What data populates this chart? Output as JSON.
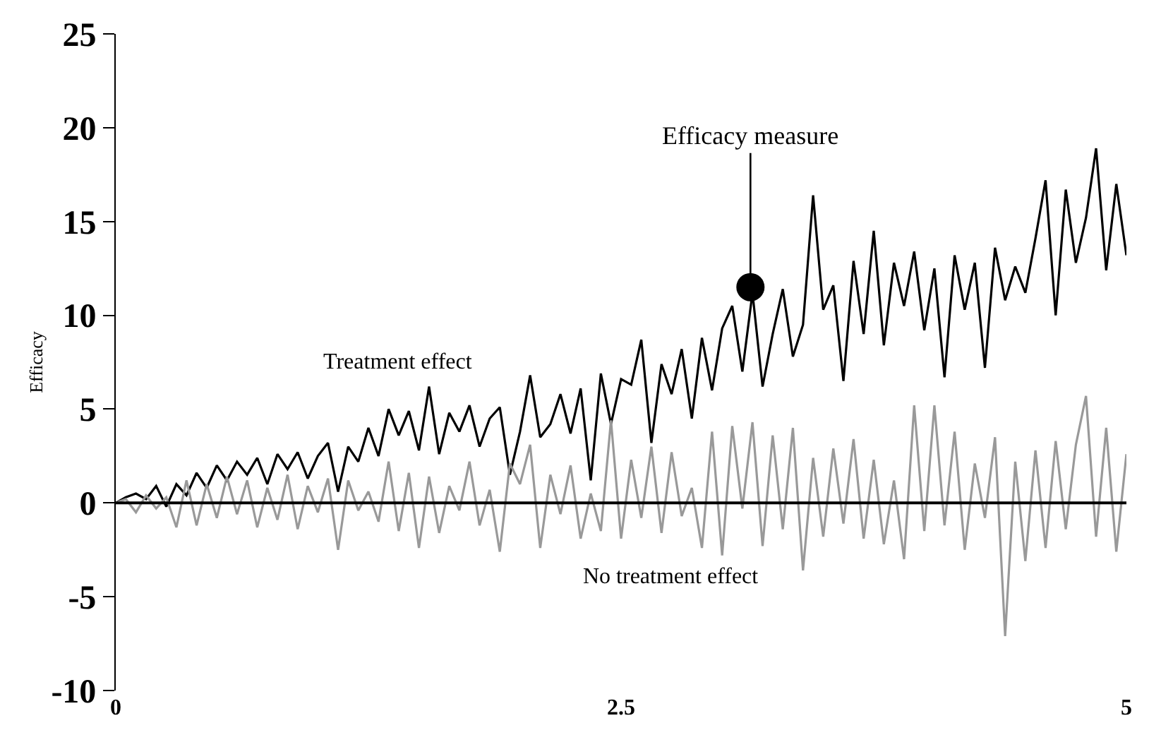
{
  "chart_data": {
    "type": "line",
    "ylabel": "Efficacy",
    "x": [
      0,
      0.05,
      0.1,
      0.15,
      0.2,
      0.25,
      0.3,
      0.35,
      0.4,
      0.45,
      0.5,
      0.55,
      0.6,
      0.65,
      0.7,
      0.75,
      0.8,
      0.85,
      0.9,
      0.95,
      1,
      1.05,
      1.1,
      1.15,
      1.2,
      1.25,
      1.3,
      1.35,
      1.4,
      1.45,
      1.5,
      1.55,
      1.6,
      1.65,
      1.7,
      1.75,
      1.8,
      1.85,
      1.9,
      1.95,
      2,
      2.05,
      2.1,
      2.15,
      2.2,
      2.25,
      2.3,
      2.35,
      2.4,
      2.45,
      2.5,
      2.55,
      2.6,
      2.65,
      2.7,
      2.75,
      2.8,
      2.85,
      2.9,
      2.95,
      3,
      3.05,
      3.1,
      3.15,
      3.2,
      3.25,
      3.3,
      3.35,
      3.4,
      3.45,
      3.5,
      3.55,
      3.6,
      3.65,
      3.7,
      3.75,
      3.8,
      3.85,
      3.9,
      3.95,
      4,
      4.05,
      4.1,
      4.15,
      4.2,
      4.25,
      4.3,
      4.35,
      4.4,
      4.45,
      4.5,
      4.55,
      4.6,
      4.65,
      4.7,
      4.75,
      4.8,
      4.85,
      4.9,
      4.95,
      5
    ],
    "series": [
      {
        "name": "Treatment effect",
        "color": "#000000",
        "values": [
          0,
          0.3,
          0.5,
          0.2,
          0.9,
          -0.2,
          1.0,
          0.4,
          1.6,
          0.8,
          2.0,
          1.2,
          2.2,
          1.5,
          2.4,
          1.0,
          2.6,
          1.8,
          2.7,
          1.3,
          2.5,
          3.2,
          0.6,
          3.0,
          2.2,
          4.0,
          2.5,
          5.0,
          3.6,
          4.9,
          2.8,
          6.2,
          2.6,
          4.8,
          3.8,
          5.2,
          3.0,
          4.5,
          5.1,
          1.5,
          3.8,
          6.8,
          3.5,
          4.2,
          5.8,
          3.7,
          6.1,
          1.2,
          6.9,
          4.2,
          6.6,
          6.3,
          8.7,
          3.2,
          7.4,
          5.8,
          8.2,
          4.5,
          8.8,
          6.0,
          9.3,
          10.5,
          7.0,
          11.2,
          6.2,
          9.0,
          11.4,
          7.8,
          9.5,
          16.4,
          10.3,
          11.6,
          6.5,
          12.9,
          9.0,
          14.5,
          8.4,
          12.8,
          10.5,
          13.4,
          9.2,
          12.5,
          6.7,
          13.2,
          10.3,
          12.8,
          7.2,
          13.6,
          10.8,
          12.6,
          11.2,
          14.1,
          17.2,
          10.0,
          16.7,
          12.8,
          15.2,
          18.9,
          12.4,
          17.0,
          13.2
        ]
      },
      {
        "name": "No treatment effect",
        "color": "#999999",
        "values": [
          0,
          0.2,
          -0.5,
          0.4,
          -0.3,
          0.3,
          -1.3,
          1.2,
          -1.2,
          1.0,
          -0.8,
          1.4,
          -0.6,
          1.2,
          -1.3,
          0.8,
          -0.9,
          1.5,
          -1.4,
          0.9,
          -0.5,
          1.3,
          -2.5,
          1.2,
          -0.4,
          0.6,
          -1.0,
          2.2,
          -1.5,
          1.6,
          -2.4,
          1.4,
          -1.6,
          0.9,
          -0.4,
          2.2,
          -1.2,
          0.7,
          -2.6,
          2.1,
          1.0,
          3.1,
          -2.4,
          1.5,
          -0.6,
          2.0,
          -1.9,
          0.5,
          -1.5,
          4.4,
          -1.9,
          2.3,
          -0.8,
          3.0,
          -1.6,
          2.7,
          -0.7,
          0.8,
          -2.4,
          3.8,
          -2.8,
          4.1,
          -0.3,
          4.3,
          -2.3,
          3.6,
          -1.4,
          4.0,
          -3.6,
          2.4,
          -1.8,
          2.9,
          -1.1,
          3.4,
          -1.9,
          2.3,
          -2.2,
          1.2,
          -3.0,
          5.2,
          -1.5,
          5.2,
          -1.2,
          3.8,
          -2.5,
          2.1,
          -0.8,
          3.5,
          -7.1,
          2.2,
          -3.1,
          2.8,
          -2.4,
          3.3,
          -1.4,
          3.1,
          5.7,
          -1.8,
          4.0,
          -2.6,
          2.6
        ]
      },
      {
        "type": "scatter",
        "marker": "circle",
        "color": "#000000",
        "x": [
          3.14
        ],
        "values": [
          11.5
        ]
      }
    ],
    "annotations": [
      {
        "text": "Efficacy measure",
        "x": 3.14,
        "y": 11.5
      }
    ],
    "ref_lines": [
      {
        "axis": "y",
        "value": 0,
        "color": "#000000"
      }
    ],
    "marker": "none",
    "line_style": "solid",
    "xlim": [
      0,
      5
    ],
    "xticks": [
      0,
      2.5,
      5
    ],
    "ylim": [
      -10,
      25
    ],
    "yticks": [
      -10,
      -5,
      0,
      5,
      10,
      15,
      20,
      25
    ],
    "legend": false
  }
}
